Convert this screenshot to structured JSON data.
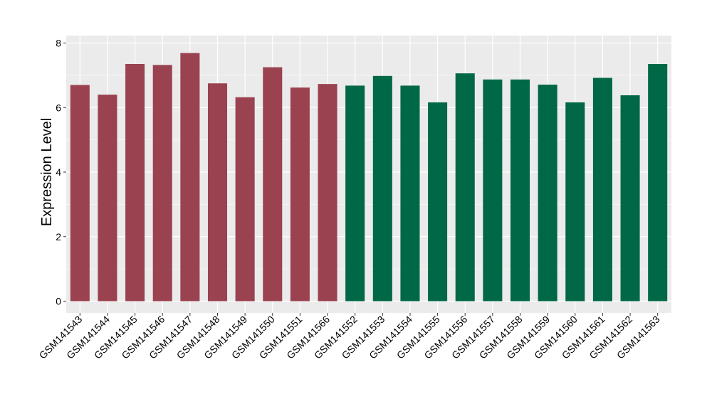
{
  "chart_data": {
    "type": "bar",
    "title": "",
    "xlabel": "",
    "ylabel": "Expression Level",
    "ylim": [
      0,
      8
    ],
    "yticks": [
      0,
      2,
      4,
      6,
      8
    ],
    "grid": true,
    "legend": "none",
    "categories": [
      "GSM141543",
      "GSM141544",
      "GSM141545",
      "GSM141546",
      "GSM141547",
      "GSM141548",
      "GSM141549",
      "GSM141550",
      "GSM141551",
      "GSM141566",
      "GSM141552",
      "GSM141553",
      "GSM141554",
      "GSM141555",
      "GSM141556",
      "GSM141557",
      "GSM141558",
      "GSM141559",
      "GSM141560",
      "GSM141561",
      "GSM141562",
      "GSM141563"
    ],
    "values": [
      6.7,
      6.4,
      7.35,
      7.32,
      7.69,
      6.75,
      6.32,
      7.25,
      6.62,
      6.73,
      6.68,
      6.98,
      6.68,
      6.16,
      7.06,
      6.87,
      6.87,
      6.71,
      6.16,
      6.92,
      6.38,
      7.35
    ],
    "groups": [
      {
        "color": "#9b4250",
        "count": 10
      },
      {
        "color": "#006847",
        "count": 12
      }
    ],
    "panel_background": "#ebebeb",
    "grid_color": "#ffffff"
  }
}
